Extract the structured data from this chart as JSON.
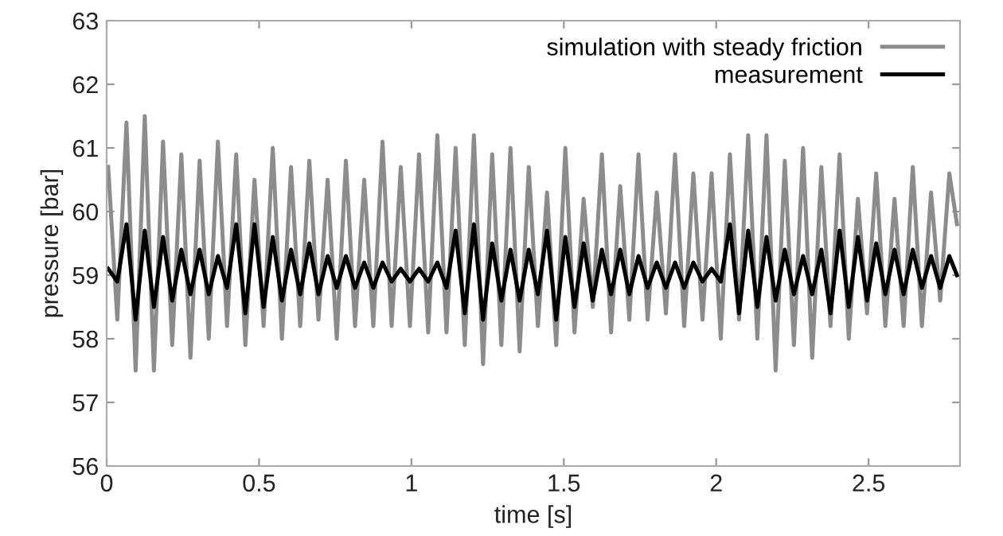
{
  "chart_data": {
    "type": "line",
    "xlabel": "time [s]",
    "ylabel": "pressure [bar]",
    "xlim": [
      0,
      2.8
    ],
    "ylim": [
      56,
      63
    ],
    "xticks": [
      0,
      0.5,
      1,
      1.5,
      2,
      2.5
    ],
    "yticks": [
      56,
      57,
      58,
      59,
      60,
      61,
      62,
      63
    ],
    "legend": "top right",
    "grid": false,
    "marker": "none",
    "line_style": "solid",
    "x": [
      0.005,
      0.035,
      0.065,
      0.095,
      0.125,
      0.155,
      0.185,
      0.215,
      0.245,
      0.275,
      0.305,
      0.335,
      0.365,
      0.395,
      0.425,
      0.455,
      0.485,
      0.515,
      0.545,
      0.575,
      0.605,
      0.635,
      0.665,
      0.695,
      0.725,
      0.755,
      0.785,
      0.815,
      0.845,
      0.875,
      0.905,
      0.935,
      0.965,
      0.995,
      1.025,
      1.055,
      1.085,
      1.115,
      1.145,
      1.175,
      1.205,
      1.235,
      1.265,
      1.295,
      1.325,
      1.355,
      1.385,
      1.415,
      1.445,
      1.475,
      1.505,
      1.535,
      1.565,
      1.595,
      1.625,
      1.655,
      1.685,
      1.715,
      1.745,
      1.775,
      1.805,
      1.835,
      1.865,
      1.895,
      1.925,
      1.955,
      1.985,
      2.015,
      2.045,
      2.075,
      2.105,
      2.135,
      2.165,
      2.195,
      2.225,
      2.255,
      2.285,
      2.315,
      2.345,
      2.375,
      2.405,
      2.435,
      2.465,
      2.495,
      2.525,
      2.555,
      2.585,
      2.615,
      2.645,
      2.675,
      2.705,
      2.735,
      2.765,
      2.79
    ],
    "series": [
      {
        "name": "simulation with steady friction",
        "color": "#8c8c8c",
        "values": [
          60.7,
          58.3,
          61.4,
          57.5,
          61.5,
          57.5,
          61.1,
          57.9,
          60.9,
          57.7,
          60.8,
          58.0,
          61.1,
          58.2,
          60.9,
          57.9,
          60.5,
          58.2,
          61.0,
          58.0,
          60.7,
          58.2,
          60.8,
          58.3,
          60.5,
          58.0,
          60.8,
          58.2,
          60.5,
          58.2,
          61.1,
          58.2,
          60.7,
          58.2,
          60.9,
          58.1,
          61.2,
          58.1,
          61.0,
          57.9,
          61.2,
          57.6,
          60.9,
          57.9,
          61.0,
          57.8,
          60.7,
          58.2,
          60.3,
          57.9,
          61.0,
          58.1,
          60.2,
          58.5,
          60.9,
          58.1,
          60.4,
          58.3,
          60.9,
          58.3,
          60.3,
          58.4,
          60.9,
          58.2,
          60.6,
          58.3,
          60.6,
          58.0,
          60.9,
          58.3,
          61.2,
          58.0,
          61.2,
          57.5,
          60.8,
          57.9,
          61.0,
          57.7,
          60.7,
          58.2,
          60.9,
          58.0,
          60.2,
          58.4,
          60.6,
          58.2,
          60.2,
          58.2,
          60.7,
          58.2,
          60.3,
          58.6,
          60.6,
          59.8
        ]
      },
      {
        "name": "measurement",
        "color": "#000000",
        "values": [
          59.1,
          58.9,
          59.8,
          58.3,
          59.7,
          58.5,
          59.6,
          58.6,
          59.4,
          58.7,
          59.4,
          58.7,
          59.3,
          58.8,
          59.8,
          58.4,
          59.8,
          58.5,
          59.6,
          58.6,
          59.4,
          58.7,
          59.5,
          58.7,
          59.3,
          58.8,
          59.3,
          58.8,
          59.2,
          58.8,
          59.2,
          58.9,
          59.1,
          58.9,
          59.1,
          58.9,
          59.2,
          58.8,
          59.7,
          58.4,
          59.8,
          58.3,
          59.5,
          58.6,
          59.4,
          58.6,
          59.4,
          58.7,
          59.7,
          58.3,
          59.6,
          58.5,
          59.5,
          58.6,
          59.4,
          58.7,
          59.4,
          58.7,
          59.3,
          58.8,
          59.2,
          58.8,
          59.2,
          58.8,
          59.2,
          58.9,
          59.1,
          58.9,
          59.8,
          58.4,
          59.7,
          58.5,
          59.6,
          58.6,
          59.4,
          58.7,
          59.3,
          58.7,
          59.4,
          58.4,
          59.7,
          58.5,
          59.6,
          58.6,
          59.5,
          58.7,
          59.4,
          58.7,
          59.4,
          58.8,
          59.3,
          58.8,
          59.3,
          59.0
        ]
      }
    ]
  }
}
